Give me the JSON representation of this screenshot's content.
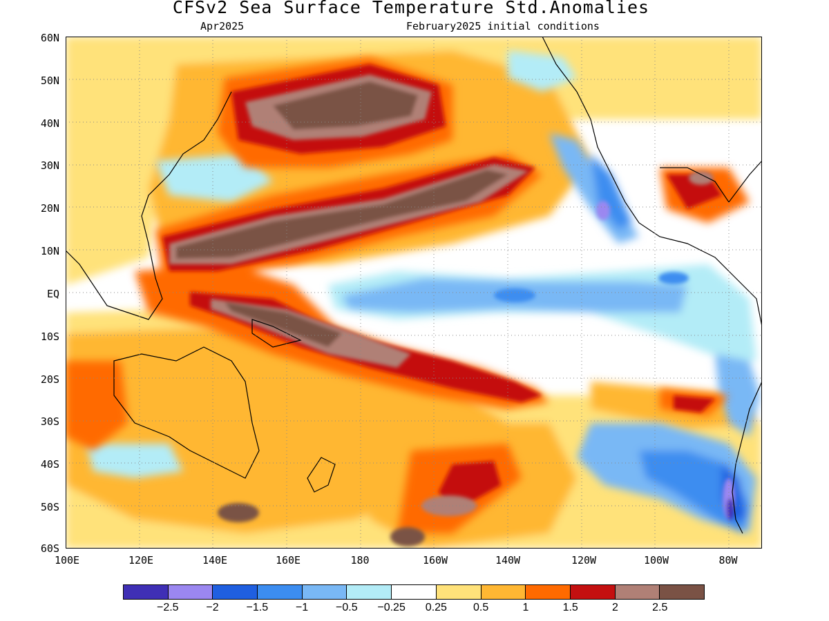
{
  "header": {
    "title": "CFSv2 Sea Surface Temperature Std.Anomalies",
    "valid_month": "Apr2025",
    "init_conditions": "February2025 initial conditions"
  },
  "map": {
    "latitude_labels": [
      "60N",
      "50N",
      "40N",
      "30N",
      "20N",
      "10N",
      "EQ",
      "10S",
      "20S",
      "30S",
      "40S",
      "50S",
      "60S"
    ],
    "longitude_labels": [
      "100E",
      "120E",
      "140E",
      "160E",
      "180",
      "160W",
      "140W",
      "120W",
      "100W",
      "80W"
    ]
  },
  "legend": {
    "colors": [
      "#3f2fb5",
      "#9b87f0",
      "#1f5fe0",
      "#3c8df0",
      "#79b8f5",
      "#b3ecf7",
      "#ffffff",
      "#ffe27a",
      "#ffb733",
      "#ff6a00",
      "#c41010",
      "#b08076",
      "#7a5245"
    ],
    "labels": [
      "-2.5",
      "-2",
      "-1.5",
      "-1",
      "-0.5",
      "-0.25",
      "0.25",
      "0.5",
      "1",
      "1.5",
      "2",
      "2.5"
    ]
  }
}
